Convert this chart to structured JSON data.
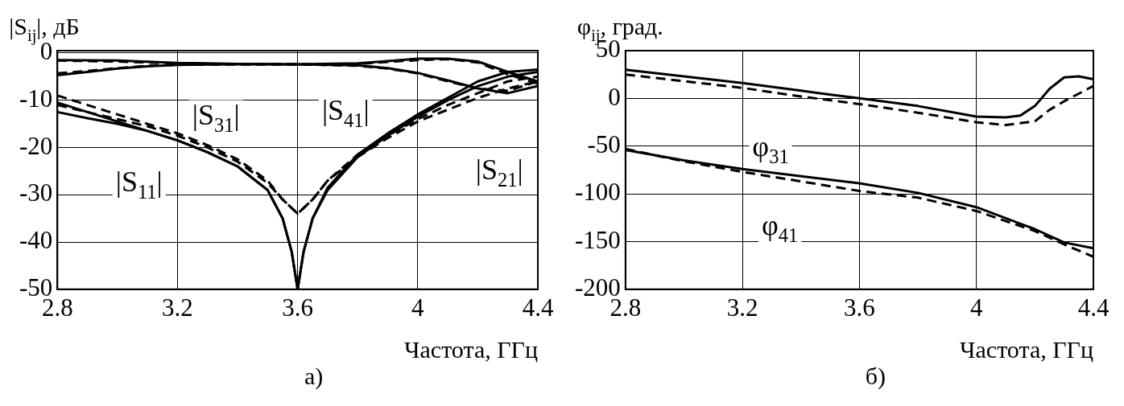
{
  "chart_data": [
    {
      "type": "line",
      "ylabel": "|S$_{ij}$|, дБ",
      "xlabel": "Частота, ГГц",
      "subtitle": "а)",
      "xlim": [
        2.8,
        4.4
      ],
      "xticks": [
        2.8,
        3.2,
        3.6,
        4,
        4.4
      ],
      "ylim": [
        -50,
        0.5
      ],
      "yticks": [
        0,
        -10,
        -20,
        -30,
        -40,
        -50
      ],
      "grid": true,
      "legend": false,
      "marker": "none",
      "series": [
        {
          "color": "#000000",
          "line_style": "solid",
          "x": [
            2.8,
            2.9,
            3.0,
            3.1,
            3.2,
            3.3,
            3.4,
            3.5,
            3.55,
            3.58,
            3.6,
            3.62,
            3.65,
            3.7,
            3.8,
            3.9,
            4.0,
            4.1,
            4.2,
            4.3,
            4.4
          ],
          "values": [
            -12.5,
            -13.8,
            -15,
            -16.5,
            -18.5,
            -21,
            -24,
            -29,
            -35,
            -42,
            -50,
            -42,
            -35,
            -29,
            -22,
            -17.5,
            -13.5,
            -10,
            -7,
            -5,
            -4
          ]
        },
        {
          "color": "#000000",
          "line_style": "dashed",
          "x": [
            2.8,
            2.9,
            3.0,
            3.1,
            3.2,
            3.3,
            3.4,
            3.5,
            3.55,
            3.6,
            3.65,
            3.7,
            3.8,
            3.9,
            4.0,
            4.1,
            4.2,
            4.3,
            4.4
          ],
          "values": [
            -11,
            -12.5,
            -14,
            -15.5,
            -17.5,
            -20,
            -23,
            -27.5,
            -31,
            -34,
            -31,
            -27,
            -22,
            -18,
            -14.5,
            -12,
            -9.5,
            -7.5,
            -6
          ]
        },
        {
          "color": "#000000",
          "line_style": "solid",
          "x": [
            2.8,
            2.9,
            3.0,
            3.1,
            3.2,
            3.3,
            3.4,
            3.5,
            3.55,
            3.58,
            3.6,
            3.62,
            3.65,
            3.7,
            3.8,
            3.9,
            4.0,
            4.1,
            4.2,
            4.3,
            4.4
          ],
          "values": [
            -10.5,
            -12.5,
            -14.5,
            -16.5,
            -18.5,
            -21,
            -24,
            -29,
            -35,
            -42,
            -50,
            -42,
            -35,
            -28.5,
            -21.5,
            -17,
            -13,
            -9.5,
            -6,
            -4,
            -3.5
          ]
        },
        {
          "color": "#000000",
          "line_style": "dashed",
          "x": [
            2.8,
            2.9,
            3.0,
            3.1,
            3.2,
            3.3,
            3.4,
            3.5,
            3.55,
            3.6,
            3.65,
            3.7,
            3.8,
            3.9,
            4.0,
            4.1,
            4.2,
            4.3,
            4.4
          ],
          "values": [
            -9,
            -11,
            -13,
            -15,
            -17,
            -19.5,
            -22.5,
            -27,
            -31,
            -34,
            -31,
            -27,
            -21.5,
            -17.5,
            -14,
            -11,
            -8.5,
            -6,
            -5
          ]
        },
        {
          "color": "#000000",
          "line_style": "solid",
          "x": [
            2.8,
            2.9,
            3.0,
            3.1,
            3.2,
            3.4,
            3.6,
            3.8,
            3.9,
            4.0,
            4.1,
            4.2,
            4.3,
            4.4
          ],
          "values": [
            -4.7,
            -4,
            -3.3,
            -2.8,
            -2.5,
            -2.4,
            -2.4,
            -2.6,
            -3.2,
            -4.2,
            -5.8,
            -7.5,
            -8.5,
            -7
          ]
        },
        {
          "color": "#000000",
          "line_style": "dashed",
          "x": [
            2.8,
            2.9,
            3.0,
            3.1,
            3.2,
            3.4,
            3.6,
            3.8,
            3.9,
            4.0,
            4.1,
            4.2,
            4.3,
            4.4
          ],
          "values": [
            -4.3,
            -3.8,
            -3.2,
            -2.7,
            -2.5,
            -2.4,
            -2.4,
            -2.7,
            -3.3,
            -4.3,
            -6,
            -7.5,
            -8,
            -6
          ]
        },
        {
          "color": "#000000",
          "line_style": "solid",
          "x": [
            2.8,
            3.0,
            3.2,
            3.4,
            3.6,
            3.8,
            3.9,
            4.0,
            4.1,
            4.2,
            4.3,
            4.4
          ],
          "values": [
            -1.5,
            -1.6,
            -2.1,
            -2.3,
            -2.4,
            -2.2,
            -1.7,
            -1.2,
            -1.2,
            -1.8,
            -4,
            -6
          ]
        },
        {
          "color": "#000000",
          "line_style": "dashed",
          "x": [
            2.8,
            3.0,
            3.2,
            3.4,
            3.6,
            3.8,
            3.9,
            4.0,
            4.1,
            4.2,
            4.3,
            4.4
          ],
          "values": [
            -1.6,
            -1.8,
            -2.2,
            -2.4,
            -2.4,
            -2.3,
            -1.9,
            -1.5,
            -1.3,
            -2,
            -4.5,
            -6.5
          ]
        }
      ],
      "annotations": [
        "|S$_{31}$|",
        "|S$_{11}$|",
        "|S$_{41}$|",
        "|S$_{21}$|"
      ]
    },
    {
      "type": "line",
      "ylabel": "φ$_{ij}$, град.",
      "xlabel": "Частота, ГГц",
      "subtitle": "б)",
      "xlim": [
        2.8,
        4.4
      ],
      "xticks": [
        2.8,
        3.2,
        3.6,
        4,
        4.4
      ],
      "ylim": [
        -200,
        50
      ],
      "yticks": [
        50,
        0,
        -50,
        -100,
        -150,
        -200
      ],
      "grid": true,
      "legend": false,
      "marker": "none",
      "series": [
        {
          "color": "#000000",
          "line_style": "solid",
          "x": [
            2.8,
            3.0,
            3.2,
            3.4,
            3.6,
            3.8,
            4.0,
            4.1,
            4.15,
            4.2,
            4.25,
            4.3,
            4.35,
            4.4
          ],
          "values": [
            30,
            23,
            16,
            8,
            0,
            -8,
            -19,
            -20,
            -18,
            -8,
            10,
            22,
            23,
            20
          ]
        },
        {
          "color": "#000000",
          "line_style": "dashed",
          "x": [
            2.8,
            3.0,
            3.2,
            3.4,
            3.6,
            3.8,
            4.0,
            4.1,
            4.2,
            4.25,
            4.3,
            4.4
          ],
          "values": [
            25,
            18,
            11,
            2,
            -6,
            -15,
            -25,
            -28,
            -24,
            -12,
            -3,
            13
          ]
        },
        {
          "color": "#000000",
          "line_style": "solid",
          "x": [
            2.8,
            3.0,
            3.2,
            3.6,
            3.8,
            4.0,
            4.2,
            4.3,
            4.4
          ],
          "values": [
            -54,
            -65,
            -74,
            -89,
            -99,
            -114,
            -137,
            -151,
            -157
          ]
        },
        {
          "color": "#000000",
          "line_style": "dashed",
          "x": [
            2.8,
            3.0,
            3.2,
            3.6,
            3.8,
            4.0,
            4.2,
            4.3,
            4.4
          ],
          "values": [
            -53,
            -66,
            -77,
            -97,
            -104,
            -118,
            -139,
            -153,
            -166
          ]
        }
      ],
      "annotations": [
        "φ$_{31}$",
        "φ$_{41}$"
      ]
    }
  ]
}
